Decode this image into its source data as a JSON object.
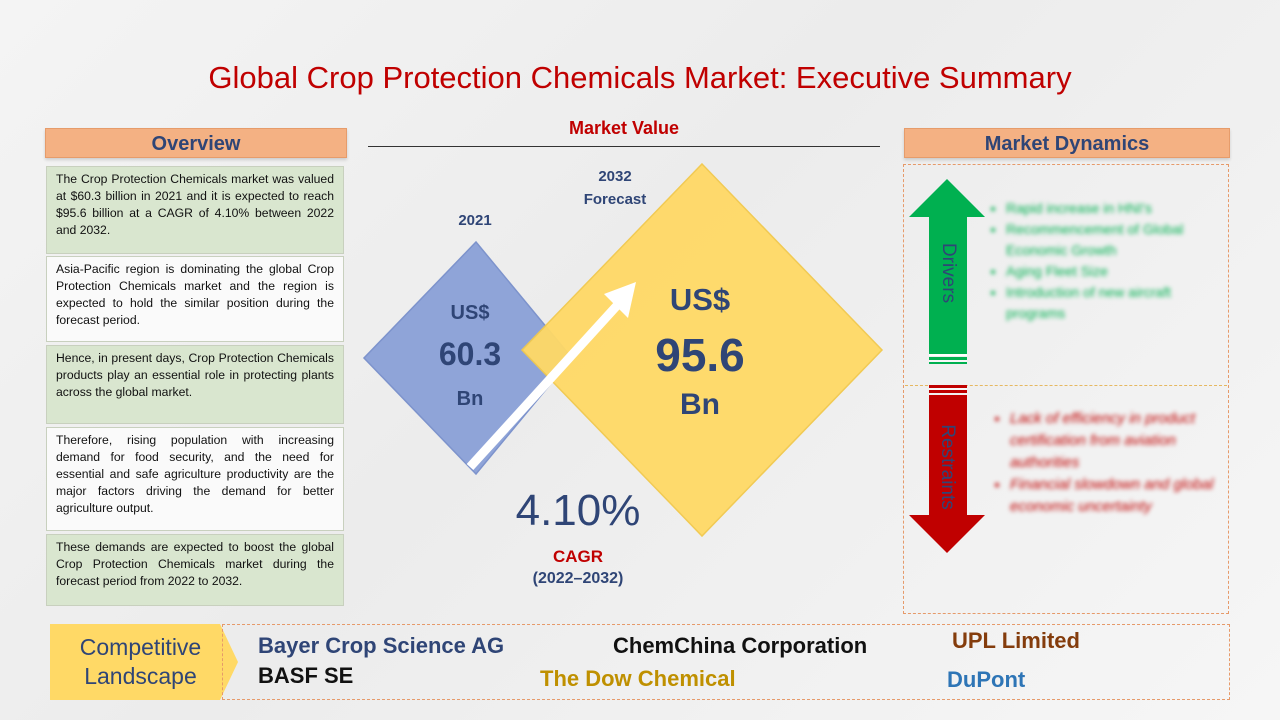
{
  "title": "Global Crop Protection Chemicals Market: Executive Summary",
  "overview": {
    "header": "Overview",
    "paragraphs": [
      "The Crop Protection Chemicals market was valued at $60.3 billion in 2021 and it is expected to reach $95.6 billion at a CAGR of 4.10% between 2022 and 2032.",
      "Asia-Pacific region is dominating the global Crop Protection Chemicals market and the region is expected to hold the similar position during the forecast period.",
      "Hence, in present days, Crop Protection Chemicals products play an essential role in protecting plants across the global market.",
      "Therefore, rising population with increasing demand for food security, and the need for essential and safe agriculture productivity are the major factors driving the demand for better agriculture output.",
      "These demands are expected to boost the global Crop Protection Chemicals market during the forecast period from 2022 to 2032."
    ]
  },
  "market_value": {
    "header": "Market Value",
    "year_2021": "2021",
    "forecast_year": "2032",
    "forecast_label": "Forecast",
    "value_2021": {
      "currency": "US$",
      "amount": "60.3",
      "unit": "Bn"
    },
    "value_2032": {
      "currency": "US$",
      "amount": "95.6",
      "unit": "Bn"
    },
    "cagr_value": "4.10%",
    "cagr_label": "CAGR",
    "cagr_period": "(2022–2032)"
  },
  "market_dynamics": {
    "header": "Market Dynamics",
    "drivers_label": "Drivers",
    "drivers": [
      "Rapid increase in HNI's",
      "Recommencement of Global Economic Growth",
      "Aging Fleet Size",
      "Introduction of new aircraft programs"
    ],
    "restraints_label": "Restraints",
    "restraints": [
      "Lack of efficiency in product certification from aviation authorities",
      "Financial slowdown and global economic uncertainty"
    ]
  },
  "competitive_landscape": {
    "label_line1": "Competitive",
    "label_line2": "Landscape",
    "companies": [
      "Bayer Crop Science AG",
      "BASF SE",
      "ChemChina Corporation",
      "The Dow Chemical",
      "UPL Limited",
      "DuPont"
    ]
  },
  "colors": {
    "title_red": "#c00000",
    "header_orange": "#f4b183",
    "header_text": "#2f4576",
    "overview_green": "#d9e6cf",
    "diamond_blue": "#8fa4d8",
    "diamond_yellow": "#ffd966",
    "driver_green": "#00b050",
    "restraint_red": "#c00000"
  }
}
